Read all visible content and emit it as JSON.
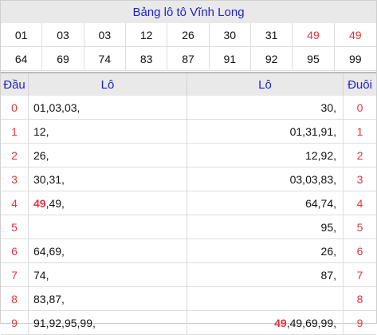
{
  "title": "Bảng lô tô Vĩnh Long",
  "numbers_row1": [
    "01",
    "03",
    "03",
    "12",
    "26",
    "30",
    "31",
    "49",
    "49"
  ],
  "numbers_row2": [
    "64",
    "69",
    "74",
    "83",
    "87",
    "91",
    "92",
    "95",
    "99"
  ],
  "highlight_color": "#e8333c",
  "header": {
    "dau": "Đầu",
    "lo_left": "Lô",
    "lo_right": "Lô",
    "duoi": "Đuôi"
  },
  "rows": [
    {
      "digit": "0",
      "left": [
        "01",
        "03",
        "03"
      ],
      "right": [
        "30"
      ]
    },
    {
      "digit": "1",
      "left": [
        "12"
      ],
      "right": [
        "01",
        "31",
        "91"
      ]
    },
    {
      "digit": "2",
      "left": [
        "26"
      ],
      "right": [
        "12",
        "92"
      ]
    },
    {
      "digit": "3",
      "left": [
        "30",
        "31"
      ],
      "right": [
        "03",
        "03",
        "83"
      ]
    },
    {
      "digit": "4",
      "left": [
        "49",
        "49"
      ],
      "right": [
        "64",
        "74"
      ]
    },
    {
      "digit": "5",
      "left": [],
      "right": [
        "95"
      ]
    },
    {
      "digit": "6",
      "left": [
        "64",
        "69"
      ],
      "right": [
        "26"
      ]
    },
    {
      "digit": "7",
      "left": [
        "74"
      ],
      "right": [
        "87"
      ]
    },
    {
      "digit": "8",
      "left": [
        "83",
        "87"
      ],
      "right": []
    },
    {
      "digit": "9",
      "left": [
        "91",
        "92",
        "95",
        "99"
      ],
      "right": [
        "49",
        "49",
        "69",
        "99"
      ]
    }
  ],
  "special_numbers": [
    "49"
  ]
}
